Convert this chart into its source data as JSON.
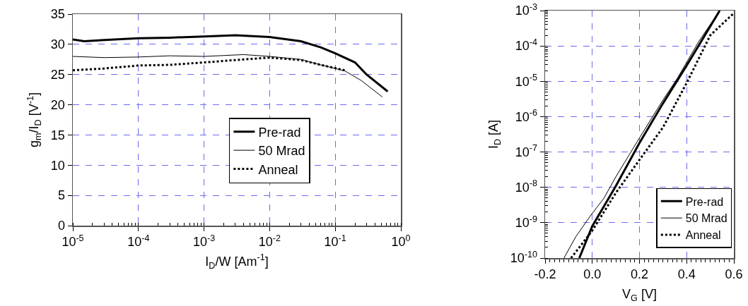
{
  "chart_data": [
    {
      "type": "line",
      "xlabel": "I$_{D}$/W [Am$^{-1}$]",
      "ylabel": "g$_{m}$/I$_{D}$ [V$^{-1}$]",
      "log": "x",
      "grid": true,
      "legend": "bottom",
      "xlim": [
        1e-05,
        1
      ],
      "xticks": [
        {
          "value": 1e-05,
          "label": "10$^{-5}$"
        },
        {
          "value": 0.0001,
          "label": "10$^{-4}$"
        },
        {
          "value": 0.001,
          "label": "10$^{-3}$"
        },
        {
          "value": 0.01,
          "label": "10$^{-2}$"
        },
        {
          "value": 0.1,
          "label": "10$^{-1}$"
        },
        {
          "value": 1,
          "label": "10$^{0}$"
        }
      ],
      "ylim": [
        0,
        35
      ],
      "yticks": [
        0,
        5,
        10,
        15,
        20,
        25,
        30,
        35
      ],
      "series": [
        {
          "name": "Pre-rad",
          "color": "#000000",
          "line_style": "solid",
          "x": [
            1e-05,
            1.5e-05,
            3e-05,
            0.0001,
            0.0003,
            0.001,
            0.003,
            0.01,
            0.03,
            0.06,
            0.1,
            0.2,
            0.3,
            0.63
          ],
          "values": [
            30.8,
            30.5,
            30.7,
            31.0,
            31.1,
            31.3,
            31.5,
            31.2,
            30.5,
            29.5,
            28.5,
            27,
            25,
            22.2
          ]
        },
        {
          "name": "50 Mrad",
          "color": "#000000",
          "line_style": "solid",
          "x": [
            1e-05,
            3e-05,
            0.0001,
            0.0003,
            0.001,
            0.004,
            0.01,
            0.03,
            0.06,
            0.14,
            0.25,
            0.52
          ],
          "values": [
            28,
            27.8,
            27.9,
            28.1,
            28,
            28.3,
            28,
            27.5,
            26.6,
            25.6,
            24,
            21.3
          ]
        },
        {
          "name": "Anneal",
          "color": "#000000",
          "line_style": "dotted",
          "x": [
            1e-05,
            3e-05,
            0.0001,
            0.0003,
            0.001,
            0.004,
            0.01,
            0.03,
            0.06,
            0.14
          ],
          "values": [
            25.7,
            26,
            26.5,
            26.6,
            27,
            27.5,
            27.8,
            27.4,
            26.6,
            25.7
          ]
        }
      ]
    },
    {
      "type": "line",
      "xlabel": "V$_{G}$ [V]",
      "ylabel": "I$_{D}$ [A]",
      "log": "y",
      "grid": true,
      "legend": "bottom right",
      "xlim": [
        -0.2,
        0.6
      ],
      "xticks": [
        -0.2,
        {
          "value": 0,
          "label": "0.0"
        },
        0.2,
        0.4,
        0.6
      ],
      "ylim": [
        1e-10,
        0.001
      ],
      "yticks": [
        {
          "value": 1e-10,
          "label": "10$^{-10}$"
        },
        {
          "value": 1e-09,
          "label": "10$^{-9}$"
        },
        {
          "value": 1e-08,
          "label": "10$^{-8}$"
        },
        {
          "value": 1e-07,
          "label": "10$^{-7}$"
        },
        {
          "value": 1e-06,
          "label": "10$^{-6}$"
        },
        {
          "value": 1e-05,
          "label": "10$^{-5}$"
        },
        {
          "value": 0.0001,
          "label": "10$^{-4}$"
        },
        {
          "value": 0.001,
          "label": "10$^{-3}$"
        }
      ],
      "series": [
        {
          "name": "Pre-rad",
          "color": "#000000",
          "line_style": "solid",
          "x": [
            -0.055,
            0,
            0.1,
            0.2,
            0.3,
            0.4,
            0.54
          ],
          "values": [
            1e-10,
            8e-10,
            1.1e-08,
            1.8e-07,
            2.4e-06,
            2.8e-05,
            0.001
          ]
        },
        {
          "name": "50 Mrad",
          "color": "#000000",
          "line_style": "solid",
          "x": [
            -0.12,
            -0.07,
            -0.01,
            0.05,
            0.1,
            0.2,
            0.3,
            0.36,
            0.45,
            0.54
          ],
          "values": [
            1e-10,
            4e-10,
            1.5e-09,
            5e-09,
            2e-08,
            2.5e-07,
            3e-06,
            1.2e-05,
            0.00013,
            0.001
          ]
        },
        {
          "name": "Anneal",
          "color": "#000000",
          "line_style": "dotted",
          "x": [
            -0.09,
            0,
            0.1,
            0.2,
            0.3,
            0.4,
            0.5,
            0.6
          ],
          "values": [
            1e-10,
            6e-10,
            7e-09,
            6e-08,
            5e-07,
            9e-06,
            0.0002,
            0.00085
          ]
        }
      ]
    }
  ]
}
